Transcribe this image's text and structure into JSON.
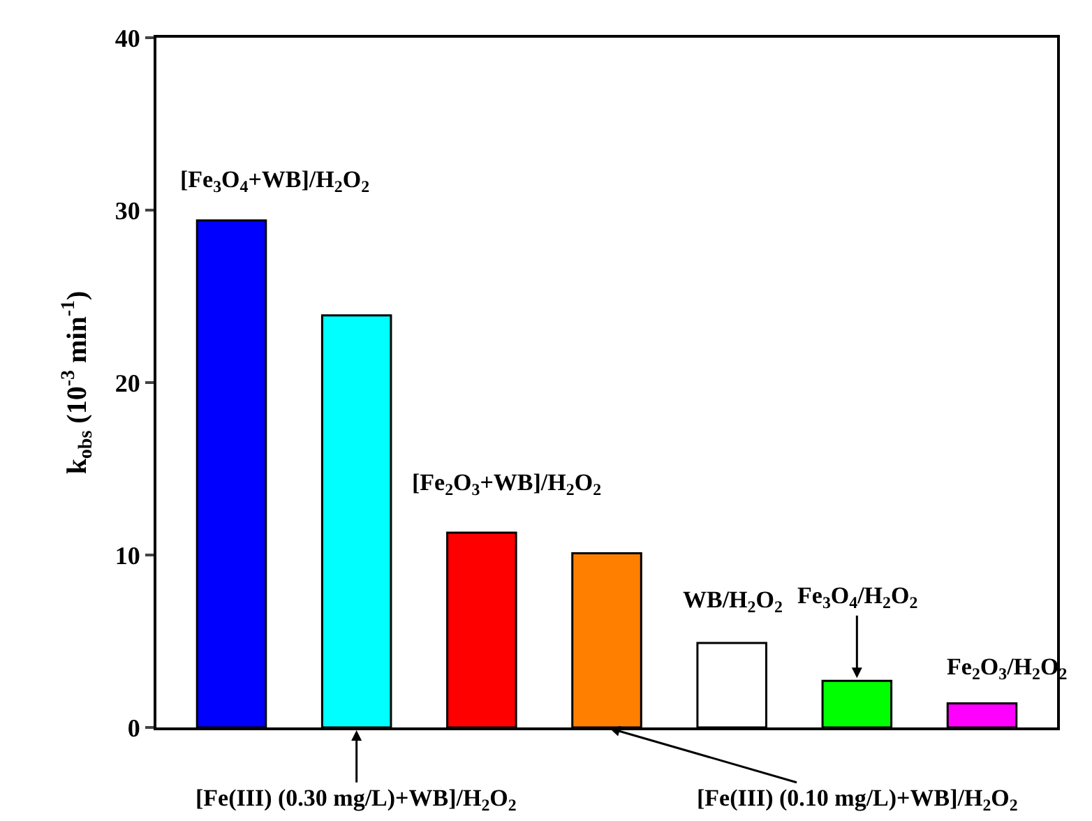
{
  "chart_data": {
    "type": "bar",
    "ylabel": "k$_{obs}$ (10$^{-3}$ min$^{-1}$)",
    "categories": [
      null,
      null,
      null,
      null,
      null,
      null,
      null
    ],
    "values": [
      29.4,
      23.9,
      11.3,
      10.1,
      4.9,
      2.7,
      1.4
    ],
    "colors": [
      "#0000ff",
      "#00ffff",
      "#ff0000",
      "#ff8000",
      "#ffffff",
      "#00ff00",
      "#ff00ff"
    ],
    "ylim": [
      0,
      40
    ],
    "yticks": [
      0,
      10,
      20,
      30,
      40
    ],
    "legend": false,
    "annotations": [
      "[Fe$_{3}$O$_{4}$+WB]/H$_{2}$O$_{2}$",
      "[Fe(III) (0.30 mg/L)+WB]/H$_{2}$O$_{2}$",
      "[Fe$_{2}$O$_{3}$+WB]/H$_{2}$O$_{2}$",
      "[Fe(III) (0.10 mg/L)+WB]/H$_{2}$O$_{2}$",
      "WB/H$_{2}$O$_{2}$",
      "Fe$_{3}$O$_{4}$/H$_{2}$O$_{2}$",
      "Fe$_{2}$O$_{3}$/H$_{2}$O$_{2}$"
    ]
  }
}
